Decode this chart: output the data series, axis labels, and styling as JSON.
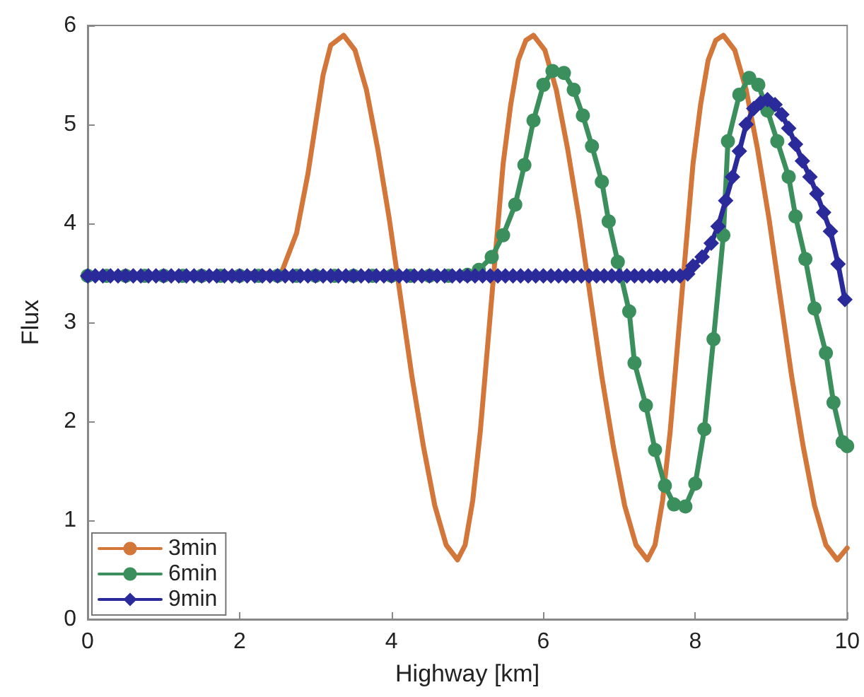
{
  "chart_data": {
    "type": "line",
    "xlabel": "Highway [km]",
    "ylabel": "Flux",
    "xlim": [
      0,
      10
    ],
    "xticks": [
      0,
      2,
      4,
      6,
      8,
      10
    ],
    "ylim": [
      0,
      6
    ],
    "yticks": [
      0,
      1,
      2,
      3,
      4,
      5,
      6
    ],
    "grid": false,
    "legend": "bottom left",
    "line_style": "solid",
    "series": [
      {
        "name": "3min",
        "color": "#d2763a",
        "marker": "none",
        "x": [
          0,
          2.55,
          2.75,
          2.9,
          3.0,
          3.1,
          3.2,
          3.37,
          3.52,
          3.67,
          3.82,
          3.97,
          4.12,
          4.27,
          4.42,
          4.57,
          4.72,
          4.87,
          4.97,
          5.07,
          5.17,
          5.27,
          5.37,
          5.47,
          5.57,
          5.67,
          5.77,
          5.87,
          6.02,
          6.17,
          6.32,
          6.47,
          6.62,
          6.77,
          6.92,
          7.07,
          7.22,
          7.37,
          7.47,
          7.57,
          7.67,
          7.77,
          7.87,
          7.97,
          8.07,
          8.17,
          8.27,
          8.37,
          8.52,
          8.67,
          8.82,
          8.97,
          9.12,
          9.27,
          9.42,
          9.57,
          9.72,
          9.87,
          10
        ],
        "values": [
          3.47,
          3.5,
          3.9,
          4.5,
          5.0,
          5.5,
          5.8,
          5.9,
          5.75,
          5.35,
          4.75,
          4.05,
          3.25,
          2.45,
          1.75,
          1.15,
          0.75,
          0.6,
          0.75,
          1.2,
          1.9,
          2.8,
          3.7,
          4.6,
          5.2,
          5.65,
          5.85,
          5.9,
          5.75,
          5.35,
          4.75,
          4.05,
          3.25,
          2.45,
          1.75,
          1.15,
          0.75,
          0.6,
          0.75,
          1.2,
          1.9,
          2.8,
          3.7,
          4.6,
          5.2,
          5.65,
          5.85,
          5.9,
          5.75,
          5.35,
          4.75,
          4.05,
          3.25,
          2.45,
          1.75,
          1.15,
          0.75,
          0.6,
          0.72
        ]
      },
      {
        "name": "6min",
        "color": "#3a8f5c",
        "marker": "circle",
        "x": [
          0,
          0.25,
          0.5,
          0.75,
          1,
          1.25,
          1.5,
          1.75,
          2,
          2.25,
          2.5,
          2.75,
          3,
          3.25,
          3.5,
          3.75,
          4,
          4.25,
          4.5,
          4.75,
          5,
          5.15,
          5.32,
          5.47,
          5.63,
          5.75,
          5.87,
          6.0,
          6.12,
          6.27,
          6.4,
          6.52,
          6.64,
          6.77,
          6.86,
          6.98,
          7.13,
          7.2,
          7.35,
          7.47,
          7.6,
          7.72,
          7.87,
          8.0,
          8.12,
          8.24,
          8.37,
          8.43,
          8.58,
          8.71,
          8.83,
          8.95,
          9.08,
          9.23,
          9.32,
          9.45,
          9.57,
          9.72,
          9.82,
          9.94,
          10
        ],
        "values": [
          3.47,
          3.47,
          3.47,
          3.47,
          3.47,
          3.47,
          3.47,
          3.47,
          3.47,
          3.47,
          3.47,
          3.47,
          3.47,
          3.47,
          3.47,
          3.47,
          3.47,
          3.47,
          3.47,
          3.47,
          3.48,
          3.53,
          3.66,
          3.88,
          4.19,
          4.59,
          5.04,
          5.4,
          5.54,
          5.52,
          5.35,
          5.09,
          4.78,
          4.42,
          4.02,
          3.61,
          3.11,
          2.59,
          2.16,
          1.71,
          1.35,
          1.16,
          1.14,
          1.37,
          1.92,
          2.83,
          3.88,
          4.83,
          5.3,
          5.47,
          5.4,
          5.14,
          4.83,
          4.47,
          4.07,
          3.64,
          3.14,
          2.69,
          2.19,
          1.79,
          1.75
        ]
      },
      {
        "name": "9min",
        "color": "#2a2a9a",
        "marker": "diamond",
        "x": [
          0,
          0.1,
          0.2,
          0.3,
          0.4,
          0.5,
          0.6,
          0.7,
          0.8,
          0.9,
          1,
          1.1,
          1.2,
          1.3,
          1.4,
          1.5,
          1.6,
          1.7,
          1.8,
          1.9,
          2,
          2.1,
          2.2,
          2.3,
          2.4,
          2.5,
          2.6,
          2.7,
          2.8,
          2.9,
          3,
          3.1,
          3.2,
          3.3,
          3.4,
          3.5,
          3.6,
          3.7,
          3.8,
          3.9,
          4,
          4.1,
          4.2,
          4.3,
          4.4,
          4.5,
          4.6,
          4.7,
          4.8,
          4.9,
          5,
          5.1,
          5.2,
          5.3,
          5.4,
          5.5,
          5.6,
          5.7,
          5.8,
          5.9,
          6,
          6.1,
          6.2,
          6.3,
          6.4,
          6.5,
          6.6,
          6.7,
          6.8,
          6.9,
          7,
          7.1,
          7.2,
          7.3,
          7.4,
          7.5,
          7.6,
          7.7,
          7.8,
          7.9,
          7.97,
          8.09,
          8.21,
          8.3,
          8.4,
          8.49,
          8.58,
          8.67,
          8.77,
          8.86,
          8.95,
          9.05,
          9.14,
          9.23,
          9.32,
          9.41,
          9.51,
          9.6,
          9.69,
          9.78,
          9.88,
          9.97
        ],
        "values": [
          3.47,
          3.47,
          3.47,
          3.47,
          3.47,
          3.47,
          3.47,
          3.47,
          3.47,
          3.47,
          3.47,
          3.47,
          3.47,
          3.47,
          3.47,
          3.47,
          3.47,
          3.47,
          3.47,
          3.47,
          3.47,
          3.47,
          3.47,
          3.47,
          3.47,
          3.47,
          3.47,
          3.47,
          3.47,
          3.47,
          3.47,
          3.47,
          3.47,
          3.47,
          3.47,
          3.47,
          3.47,
          3.47,
          3.47,
          3.47,
          3.47,
          3.47,
          3.47,
          3.47,
          3.47,
          3.47,
          3.47,
          3.47,
          3.47,
          3.47,
          3.47,
          3.47,
          3.47,
          3.47,
          3.47,
          3.47,
          3.47,
          3.47,
          3.47,
          3.47,
          3.47,
          3.47,
          3.47,
          3.47,
          3.47,
          3.47,
          3.47,
          3.47,
          3.47,
          3.47,
          3.47,
          3.47,
          3.47,
          3.47,
          3.47,
          3.47,
          3.47,
          3.47,
          3.47,
          3.49,
          3.57,
          3.66,
          3.8,
          3.97,
          4.23,
          4.47,
          4.73,
          5.0,
          5.16,
          5.22,
          5.25,
          5.2,
          5.1,
          4.96,
          4.8,
          4.63,
          4.47,
          4.3,
          4.11,
          3.92,
          3.59,
          3.23
        ]
      }
    ]
  }
}
